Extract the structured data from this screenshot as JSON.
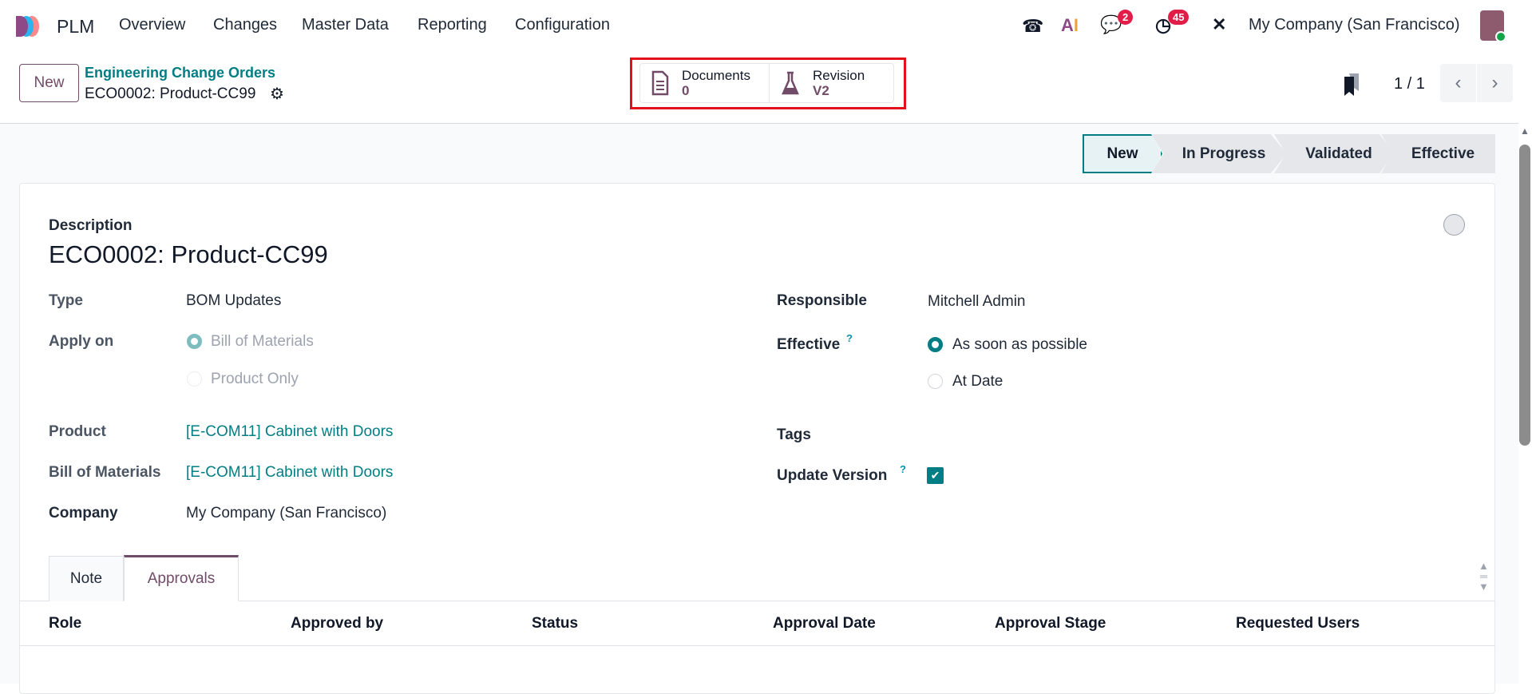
{
  "app": {
    "name": "PLM",
    "menu": [
      "Overview",
      "Changes",
      "Master Data",
      "Reporting",
      "Configuration"
    ],
    "messages_count": "2",
    "activities_count": "45",
    "company": "My Company (San Francisco)"
  },
  "control": {
    "new_label": "New",
    "breadcrumb": "Engineering Change Orders",
    "record": "ECO0002: Product-CC99",
    "smart_buttons": [
      {
        "label": "Documents",
        "value": "0",
        "icon": "document-icon"
      },
      {
        "label": "Revision",
        "value": "V2",
        "icon": "flask-icon"
      }
    ],
    "pager": "1 / 1"
  },
  "colors": {
    "accent": "#017e84",
    "brand": "#714b67",
    "highlight_box": "#e3111b"
  },
  "stages": {
    "items": [
      "New",
      "In Progress",
      "Validated",
      "Effective"
    ],
    "current": "New"
  },
  "form": {
    "description_label": "Description",
    "title": "ECO0002: Product-CC99",
    "type_label": "Type",
    "type": "BOM Updates",
    "apply_on_label": "Apply on",
    "apply_on_options": [
      "Bill of Materials",
      "Product Only"
    ],
    "apply_on_selected": "Bill of Materials",
    "product_label": "Product",
    "product": "[E-COM11] Cabinet with Doors",
    "bom_label": "Bill of Materials",
    "bom": "[E-COM11] Cabinet with Doors",
    "company_label": "Company",
    "company": "My Company (San Francisco)",
    "responsible_label": "Responsible",
    "responsible": "Mitchell Admin",
    "effective_label": "Effective",
    "effective_options": [
      "As soon as possible",
      "At Date"
    ],
    "effective_selected": "As soon as possible",
    "tags_label": "Tags",
    "update_version_label": "Update Version",
    "update_version": true,
    "help_mark": "?"
  },
  "tabs": {
    "items": [
      "Note",
      "Approvals"
    ],
    "active": "Approvals"
  },
  "approvals_table": {
    "columns": [
      "Role",
      "Approved by",
      "Status",
      "Approval Date",
      "Approval Stage",
      "Requested Users"
    ],
    "rows": []
  }
}
